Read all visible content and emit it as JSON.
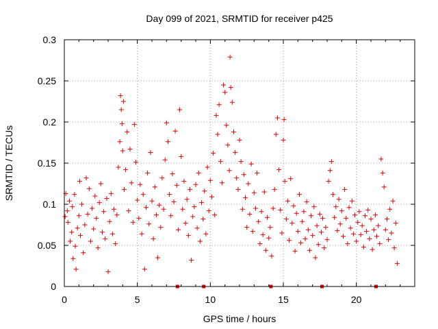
{
  "chart_data": {
    "type": "scatter",
    "title": "Day 099 of 2021, SRMTID for receiver p425",
    "xlabel": "GPS time / hours",
    "ylabel": "SRMTID / TECUs",
    "xlim": [
      0,
      24
    ],
    "ylim": [
      0,
      0.3
    ],
    "grid": true,
    "x_ticks": [
      0,
      5,
      10,
      15,
      20
    ],
    "x_tick_labels": [
      "0",
      "5",
      "10",
      "15",
      "20"
    ],
    "y_ticks": [
      0,
      0.05,
      0.1,
      0.15,
      0.2,
      0.25,
      0.3
    ],
    "y_tick_labels": [
      "0",
      "0.05",
      "0.1",
      "0.15",
      "0.2",
      "0.25",
      "0.3"
    ],
    "marker": "plus",
    "series_color": "#e00000",
    "zero_markers_x": [
      7.75,
      9.55,
      14.15,
      17.65,
      21.35
    ],
    "series": [
      {
        "name": "SRMTID",
        "points": [
          [
            0.05,
            0.085
          ],
          [
            0.1,
            0.113
          ],
          [
            0.2,
            0.092
          ],
          [
            0.25,
            0.078
          ],
          [
            0.35,
            0.104
          ],
          [
            0.4,
            0.055
          ],
          [
            0.5,
            0.066
          ],
          [
            0.55,
            0.097
          ],
          [
            0.6,
            0.034
          ],
          [
            0.7,
            0.112
          ],
          [
            0.75,
            0.049
          ],
          [
            0.8,
            0.021
          ],
          [
            0.9,
            0.071
          ],
          [
            1.0,
            0.086
          ],
          [
            1.05,
            0.128
          ],
          [
            1.1,
            0.062
          ],
          [
            1.2,
            0.1
          ],
          [
            1.3,
            0.041
          ],
          [
            1.4,
            0.075
          ],
          [
            1.5,
            0.132
          ],
          [
            1.6,
            0.088
          ],
          [
            1.7,
            0.119
          ],
          [
            1.8,
            0.055
          ],
          [
            1.9,
            0.095
          ],
          [
            2.0,
            0.07
          ],
          [
            2.1,
            0.11
          ],
          [
            2.2,
            0.083
          ],
          [
            2.3,
            0.047
          ],
          [
            2.4,
            0.102
          ],
          [
            2.5,
            0.125
          ],
          [
            2.6,
            0.066
          ],
          [
            2.7,
            0.091
          ],
          [
            2.8,
            0.058
          ],
          [
            2.9,
            0.107
          ],
          [
            3.0,
            0.018
          ],
          [
            3.1,
            0.079
          ],
          [
            3.2,
            0.113
          ],
          [
            3.3,
            0.064
          ],
          [
            3.4,
            0.094
          ],
          [
            3.5,
            0.052
          ],
          [
            3.6,
            0.087
          ],
          [
            3.7,
            0.145
          ],
          [
            3.8,
            0.176
          ],
          [
            3.85,
            0.232
          ],
          [
            3.9,
            0.215
          ],
          [
            3.95,
            0.198
          ],
          [
            4.0,
            0.165
          ],
          [
            4.05,
            0.225
          ],
          [
            4.1,
            0.118
          ],
          [
            4.2,
            0.142
          ],
          [
            4.3,
            0.188
          ],
          [
            4.4,
            0.092
          ],
          [
            4.5,
            0.167
          ],
          [
            4.6,
            0.126
          ],
          [
            4.7,
            0.078
          ],
          [
            4.8,
            0.197
          ],
          [
            4.9,
            0.151
          ],
          [
            5.0,
            0.105
          ],
          [
            5.1,
            0.083
          ],
          [
            5.2,
            0.124
          ],
          [
            5.3,
            0.064
          ],
          [
            5.4,
            0.112
          ],
          [
            5.5,
            0.021
          ],
          [
            5.6,
            0.096
          ],
          [
            5.7,
            0.138
          ],
          [
            5.8,
            0.076
          ],
          [
            5.9,
            0.163
          ],
          [
            6.0,
            0.104
          ],
          [
            6.1,
            0.058
          ],
          [
            6.2,
            0.121
          ],
          [
            6.3,
            0.087
          ],
          [
            6.4,
            0.035
          ],
          [
            6.5,
            0.099
          ],
          [
            6.6,
            0.072
          ],
          [
            6.7,
            0.132
          ],
          [
            6.8,
            0.094
          ],
          [
            6.9,
            0.154
          ],
          [
            7.0,
            0.199
          ],
          [
            7.1,
            0.176
          ],
          [
            7.2,
            0.112
          ],
          [
            7.3,
            0.086
          ],
          [
            7.4,
            0.137
          ],
          [
            7.5,
            0.103
          ],
          [
            7.6,
            0.189
          ],
          [
            7.7,
            0.123
          ],
          [
            7.8,
            0.069
          ],
          [
            7.9,
            0.215
          ],
          [
            8.0,
            0.158
          ],
          [
            8.1,
            0.094
          ],
          [
            8.2,
            0.128
          ],
          [
            8.3,
            0.077
          ],
          [
            8.4,
            0.106
          ],
          [
            8.5,
            0.062
          ],
          [
            8.6,
            0.118
          ],
          [
            8.7,
            0.032
          ],
          [
            8.8,
            0.085
          ],
          [
            8.9,
            0.097
          ],
          [
            9.0,
            0.124
          ],
          [
            9.1,
            0.071
          ],
          [
            9.2,
            0.138
          ],
          [
            9.3,
            0.055
          ],
          [
            9.4,
            0.102
          ],
          [
            9.5,
            0.082
          ],
          [
            9.6,
            0.116
          ],
          [
            9.7,
            0.064
          ],
          [
            9.8,
            0.145
          ],
          [
            9.9,
            0.092
          ],
          [
            10.0,
            0.129
          ],
          [
            10.1,
            0.109
          ],
          [
            10.2,
            0.162
          ],
          [
            10.3,
            0.087
          ],
          [
            10.4,
            0.208
          ],
          [
            10.5,
            0.185
          ],
          [
            10.6,
            0.221
          ],
          [
            10.7,
            0.152
          ],
          [
            10.8,
            0.126
          ],
          [
            10.9,
            0.245
          ],
          [
            11.0,
            0.236
          ],
          [
            11.1,
            0.196
          ],
          [
            11.2,
            0.172
          ],
          [
            11.3,
            0.141
          ],
          [
            11.35,
            0.279
          ],
          [
            11.4,
            0.242
          ],
          [
            11.5,
            0.224
          ],
          [
            11.6,
            0.188
          ],
          [
            11.7,
            0.163
          ],
          [
            11.8,
            0.132
          ],
          [
            11.9,
            0.118
          ],
          [
            12.0,
            0.178
          ],
          [
            12.1,
            0.152
          ],
          [
            12.2,
            0.094
          ],
          [
            12.3,
            0.136
          ],
          [
            12.4,
            0.108
          ],
          [
            12.5,
            0.072
          ],
          [
            12.6,
            0.125
          ],
          [
            12.7,
            0.088
          ],
          [
            12.8,
            0.149
          ],
          [
            12.9,
            0.067
          ],
          [
            13.0,
            0.114
          ],
          [
            13.1,
            0.095
          ],
          [
            13.2,
            0.138
          ],
          [
            13.3,
            0.079
          ],
          [
            13.4,
            0.052
          ],
          [
            13.5,
            0.091
          ],
          [
            13.6,
            0.063
          ],
          [
            13.7,
            0.115
          ],
          [
            13.8,
            0.044
          ],
          [
            13.9,
            0.084
          ],
          [
            14.0,
            0.059
          ],
          [
            14.1,
            0.072
          ],
          [
            14.2,
            0.037
          ],
          [
            14.3,
            0.095
          ],
          [
            14.4,
            0.118
          ],
          [
            14.5,
            0.185
          ],
          [
            14.6,
            0.205
          ],
          [
            14.7,
            0.142
          ],
          [
            14.8,
            0.093
          ],
          [
            14.9,
            0.065
          ],
          [
            15.0,
            0.178
          ],
          [
            15.05,
            0.203
          ],
          [
            15.1,
            0.128
          ],
          [
            15.2,
            0.082
          ],
          [
            15.3,
            0.104
          ],
          [
            15.4,
            0.056
          ],
          [
            15.5,
            0.131
          ],
          [
            15.6,
            0.077
          ],
          [
            15.7,
            0.098
          ],
          [
            15.8,
            0.043
          ],
          [
            15.9,
            0.089
          ],
          [
            16.0,
            0.067
          ],
          [
            16.1,
            0.112
          ],
          [
            16.2,
            0.053
          ],
          [
            16.3,
            0.079
          ],
          [
            16.4,
            0.091
          ],
          [
            16.5,
            0.058
          ],
          [
            16.6,
            0.103
          ],
          [
            16.7,
            0.069
          ],
          [
            16.8,
            0.044
          ],
          [
            16.9,
            0.086
          ],
          [
            17.0,
            0.062
          ],
          [
            17.1,
            0.097
          ],
          [
            17.2,
            0.035
          ],
          [
            17.3,
            0.074
          ],
          [
            17.4,
            0.051
          ],
          [
            17.5,
            0.088
          ],
          [
            17.6,
            0.066
          ],
          [
            17.7,
            0.083
          ],
          [
            17.8,
            0.047
          ],
          [
            17.9,
            0.072
          ],
          [
            18.0,
            0.057
          ],
          [
            18.1,
            0.128
          ],
          [
            18.2,
            0.141
          ],
          [
            18.3,
            0.152
          ],
          [
            18.4,
            0.112
          ],
          [
            18.5,
            0.084
          ],
          [
            18.6,
            0.097
          ],
          [
            18.7,
            0.068
          ],
          [
            18.8,
            0.106
          ],
          [
            18.9,
            0.076
          ],
          [
            19.0,
            0.092
          ],
          [
            19.1,
            0.061
          ],
          [
            19.2,
            0.118
          ],
          [
            19.3,
            0.083
          ],
          [
            19.4,
            0.052
          ],
          [
            19.5,
            0.096
          ],
          [
            19.6,
            0.071
          ],
          [
            19.7,
            0.104
          ],
          [
            19.8,
            0.064
          ],
          [
            19.9,
            0.087
          ],
          [
            20.0,
            0.055
          ],
          [
            20.1,
            0.078
          ],
          [
            20.2,
            0.091
          ],
          [
            20.3,
            0.063
          ],
          [
            20.4,
            0.074
          ],
          [
            20.5,
            0.048
          ],
          [
            20.6,
            0.086
          ],
          [
            20.7,
            0.067
          ],
          [
            20.8,
            0.093
          ],
          [
            20.9,
            0.058
          ],
          [
            21.0,
            0.082
          ],
          [
            21.1,
            0.045
          ],
          [
            21.2,
            0.069
          ],
          [
            21.3,
            0.087
          ],
          [
            21.4,
            0.061
          ],
          [
            21.5,
            0.074
          ],
          [
            21.6,
            0.052
          ],
          [
            21.7,
            0.155
          ],
          [
            21.8,
            0.138
          ],
          [
            21.9,
            0.121
          ],
          [
            22.0,
            0.069
          ],
          [
            22.1,
            0.082
          ],
          [
            22.2,
            0.057
          ],
          [
            22.3,
            0.094
          ],
          [
            22.4,
            0.065
          ],
          [
            22.5,
            0.104
          ],
          [
            22.6,
            0.047
          ],
          [
            22.7,
            0.077
          ],
          [
            22.8,
            0.028
          ]
        ]
      }
    ]
  }
}
